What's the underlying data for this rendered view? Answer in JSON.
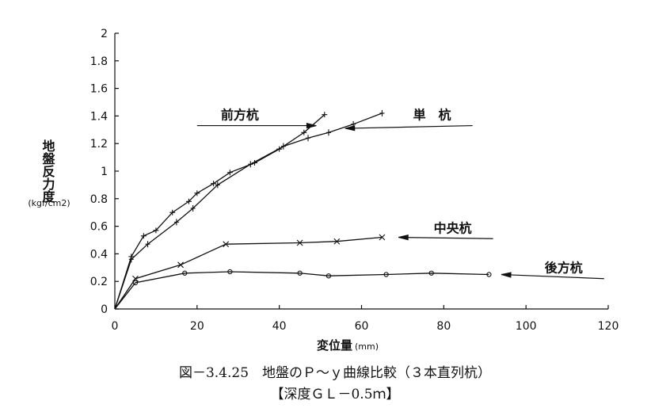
{
  "chart_data": {
    "type": "line",
    "title": "図－3.4.25　地盤のＰ～ｙ曲線比較（３本直列杭）",
    "subtitle": "【深度ＧＬ－0.5ｍ】",
    "xlabel": "変位量",
    "xlabel_unit": "(mm)",
    "ylabel": "地盤反力度",
    "ylabel_unit": "(kgf/cm2)",
    "xlim": [
      0,
      120
    ],
    "ylim": [
      0,
      2
    ],
    "x_ticks": [
      "0",
      "20",
      "40",
      "60",
      "80",
      "100",
      "120"
    ],
    "y_ticks": [
      "0",
      "0.2",
      "0.4",
      "0.6",
      "0.8",
      "1",
      "1.2",
      "1.4",
      "1.6",
      "1.8",
      "2"
    ],
    "grid": false,
    "legend": "leader-line labels",
    "series": [
      {
        "name": "前方杭",
        "marker": "plus",
        "points": [
          [
            0,
            0
          ],
          [
            4,
            0.38
          ],
          [
            7,
            0.53
          ],
          [
            10,
            0.57
          ],
          [
            14,
            0.7
          ],
          [
            18,
            0.78
          ],
          [
            20,
            0.84
          ],
          [
            24,
            0.91
          ],
          [
            28,
            0.99
          ],
          [
            34,
            1.06
          ],
          [
            40,
            1.16
          ],
          [
            46,
            1.28
          ],
          [
            51,
            1.41
          ]
        ]
      },
      {
        "name": "単　杭",
        "marker": "bar",
        "points": [
          [
            0,
            0
          ],
          [
            4,
            0.36
          ],
          [
            8,
            0.47
          ],
          [
            15,
            0.63
          ],
          [
            19,
            0.73
          ],
          [
            25,
            0.9
          ],
          [
            33,
            1.05
          ],
          [
            41,
            1.18
          ],
          [
            47,
            1.24
          ],
          [
            52,
            1.28
          ],
          [
            58,
            1.34
          ],
          [
            65,
            1.42
          ]
        ]
      },
      {
        "name": "中央杭",
        "marker": "cross",
        "points": [
          [
            0,
            0
          ],
          [
            5,
            0.22
          ],
          [
            16,
            0.32
          ],
          [
            27,
            0.47
          ],
          [
            45,
            0.48
          ],
          [
            54,
            0.49
          ],
          [
            65,
            0.52
          ]
        ]
      },
      {
        "name": "後方杭",
        "marker": "circle",
        "points": [
          [
            0,
            0
          ],
          [
            5,
            0.19
          ],
          [
            17,
            0.26
          ],
          [
            28,
            0.27
          ],
          [
            45,
            0.26
          ],
          [
            52,
            0.24
          ],
          [
            66,
            0.25
          ],
          [
            77,
            0.26
          ],
          [
            91,
            0.25
          ]
        ]
      }
    ],
    "labels": [
      {
        "series": "前方杭",
        "text": "前方杭",
        "leader_from": [
          20,
          1.33
        ],
        "leader_to": [
          49,
          1.33
        ]
      },
      {
        "series": "単　杭",
        "text": "単　杭",
        "leader_from": [
          87,
          1.33
        ],
        "leader_to": [
          56,
          1.31
        ]
      },
      {
        "series": "中央杭",
        "text": "中央杭",
        "leader_from": [
          92,
          0.51
        ],
        "leader_to": [
          69,
          0.52
        ]
      },
      {
        "series": "後方杭",
        "text": "後方杭",
        "leader_from": [
          119,
          0.22
        ],
        "leader_to": [
          94,
          0.25
        ]
      }
    ]
  }
}
